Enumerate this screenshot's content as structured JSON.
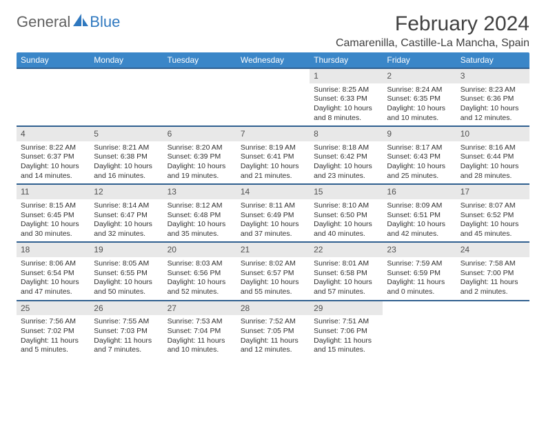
{
  "branding": {
    "word1": "General",
    "word2": "Blue"
  },
  "title": "February 2024",
  "location": "Camarenilla, Castille-La Mancha, Spain",
  "headerBg": "#3a86c8",
  "rowBorder": "#2f5f8f",
  "dayBg": "#e8e8e8",
  "weekdays": [
    "Sunday",
    "Monday",
    "Tuesday",
    "Wednesday",
    "Thursday",
    "Friday",
    "Saturday"
  ],
  "weeks": [
    [
      null,
      null,
      null,
      null,
      {
        "n": "1",
        "sr": "8:25 AM",
        "ss": "6:33 PM",
        "dl": "10 hours and 8 minutes."
      },
      {
        "n": "2",
        "sr": "8:24 AM",
        "ss": "6:35 PM",
        "dl": "10 hours and 10 minutes."
      },
      {
        "n": "3",
        "sr": "8:23 AM",
        "ss": "6:36 PM",
        "dl": "10 hours and 12 minutes."
      }
    ],
    [
      {
        "n": "4",
        "sr": "8:22 AM",
        "ss": "6:37 PM",
        "dl": "10 hours and 14 minutes."
      },
      {
        "n": "5",
        "sr": "8:21 AM",
        "ss": "6:38 PM",
        "dl": "10 hours and 16 minutes."
      },
      {
        "n": "6",
        "sr": "8:20 AM",
        "ss": "6:39 PM",
        "dl": "10 hours and 19 minutes."
      },
      {
        "n": "7",
        "sr": "8:19 AM",
        "ss": "6:41 PM",
        "dl": "10 hours and 21 minutes."
      },
      {
        "n": "8",
        "sr": "8:18 AM",
        "ss": "6:42 PM",
        "dl": "10 hours and 23 minutes."
      },
      {
        "n": "9",
        "sr": "8:17 AM",
        "ss": "6:43 PM",
        "dl": "10 hours and 25 minutes."
      },
      {
        "n": "10",
        "sr": "8:16 AM",
        "ss": "6:44 PM",
        "dl": "10 hours and 28 minutes."
      }
    ],
    [
      {
        "n": "11",
        "sr": "8:15 AM",
        "ss": "6:45 PM",
        "dl": "10 hours and 30 minutes."
      },
      {
        "n": "12",
        "sr": "8:14 AM",
        "ss": "6:47 PM",
        "dl": "10 hours and 32 minutes."
      },
      {
        "n": "13",
        "sr": "8:12 AM",
        "ss": "6:48 PM",
        "dl": "10 hours and 35 minutes."
      },
      {
        "n": "14",
        "sr": "8:11 AM",
        "ss": "6:49 PM",
        "dl": "10 hours and 37 minutes."
      },
      {
        "n": "15",
        "sr": "8:10 AM",
        "ss": "6:50 PM",
        "dl": "10 hours and 40 minutes."
      },
      {
        "n": "16",
        "sr": "8:09 AM",
        "ss": "6:51 PM",
        "dl": "10 hours and 42 minutes."
      },
      {
        "n": "17",
        "sr": "8:07 AM",
        "ss": "6:52 PM",
        "dl": "10 hours and 45 minutes."
      }
    ],
    [
      {
        "n": "18",
        "sr": "8:06 AM",
        "ss": "6:54 PM",
        "dl": "10 hours and 47 minutes."
      },
      {
        "n": "19",
        "sr": "8:05 AM",
        "ss": "6:55 PM",
        "dl": "10 hours and 50 minutes."
      },
      {
        "n": "20",
        "sr": "8:03 AM",
        "ss": "6:56 PM",
        "dl": "10 hours and 52 minutes."
      },
      {
        "n": "21",
        "sr": "8:02 AM",
        "ss": "6:57 PM",
        "dl": "10 hours and 55 minutes."
      },
      {
        "n": "22",
        "sr": "8:01 AM",
        "ss": "6:58 PM",
        "dl": "10 hours and 57 minutes."
      },
      {
        "n": "23",
        "sr": "7:59 AM",
        "ss": "6:59 PM",
        "dl": "11 hours and 0 minutes."
      },
      {
        "n": "24",
        "sr": "7:58 AM",
        "ss": "7:00 PM",
        "dl": "11 hours and 2 minutes."
      }
    ],
    [
      {
        "n": "25",
        "sr": "7:56 AM",
        "ss": "7:02 PM",
        "dl": "11 hours and 5 minutes."
      },
      {
        "n": "26",
        "sr": "7:55 AM",
        "ss": "7:03 PM",
        "dl": "11 hours and 7 minutes."
      },
      {
        "n": "27",
        "sr": "7:53 AM",
        "ss": "7:04 PM",
        "dl": "11 hours and 10 minutes."
      },
      {
        "n": "28",
        "sr": "7:52 AM",
        "ss": "7:05 PM",
        "dl": "11 hours and 12 minutes."
      },
      {
        "n": "29",
        "sr": "7:51 AM",
        "ss": "7:06 PM",
        "dl": "11 hours and 15 minutes."
      },
      null,
      null
    ]
  ],
  "labels": {
    "sunrise": "Sunrise: ",
    "sunset": "Sunset: ",
    "daylight": "Daylight: "
  }
}
